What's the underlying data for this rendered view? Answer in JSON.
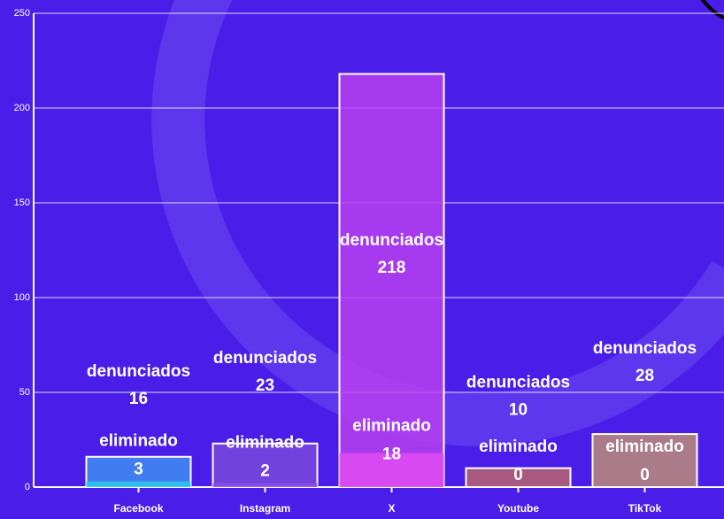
{
  "chart_data": {
    "type": "bar",
    "categories": [
      "Facebook",
      "Instagram",
      "X",
      "Youtube",
      "TikTok"
    ],
    "series": [
      {
        "name": "denunciados",
        "values": [
          16,
          23,
          218,
          10,
          28
        ],
        "colors": [
          "#3f8ef2",
          "#7a48dc",
          "#b63ff0",
          "#b7646c",
          "#bb8c78"
        ]
      },
      {
        "name": "eliminado",
        "values": [
          3,
          2,
          18,
          0,
          0
        ],
        "colors": [
          "#29c8f0",
          "#8a4cf0",
          "#e04cf2",
          "#d05050",
          "#f0c040"
        ]
      }
    ],
    "ylim": [
      0,
      250
    ],
    "yticks": [
      0,
      50,
      100,
      150,
      200,
      250
    ],
    "grid": true
  }
}
